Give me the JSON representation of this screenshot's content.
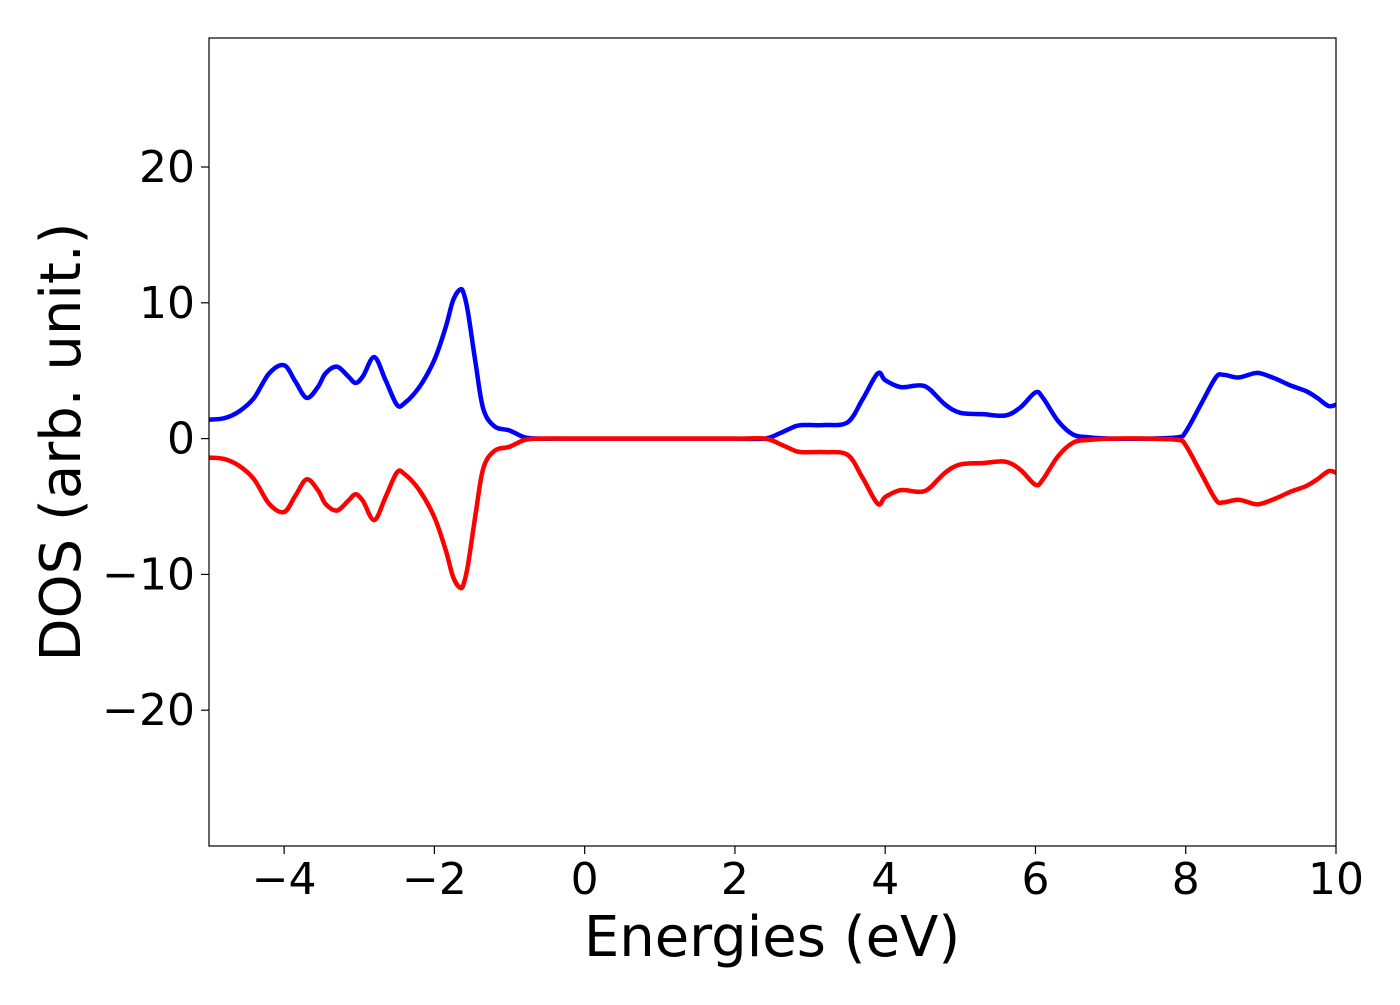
{
  "chart_data": {
    "type": "line",
    "title": "",
    "xlabel": "Energies (eV)",
    "ylabel": "DOS (arb. unit.)",
    "xlim": [
      -5,
      10
    ],
    "ylim": [
      -30,
      29.5
    ],
    "xticks": [
      -4,
      -2,
      0,
      2,
      4,
      6,
      8,
      10
    ],
    "xtick_labels": [
      "−4",
      "−2",
      "0",
      "2",
      "4",
      "6",
      "8",
      "10"
    ],
    "yticks": [
      -20,
      -10,
      0,
      10,
      20
    ],
    "ytick_labels": [
      "−20",
      "−10",
      "0",
      "10",
      "20"
    ],
    "grid": false,
    "legend": "none",
    "series": [
      {
        "color": "#0000ff",
        "x": [
          -5.0,
          -4.8,
          -4.6,
          -4.4,
          -4.2,
          -4.0,
          -3.85,
          -3.7,
          -3.55,
          -3.45,
          -3.3,
          -3.15,
          -3.05,
          -2.95,
          -2.8,
          -2.65,
          -2.5,
          -2.4,
          -2.2,
          -2.0,
          -1.85,
          -1.75,
          -1.65,
          -1.6,
          -1.55,
          -1.45,
          -1.35,
          -1.2,
          -1.0,
          -0.8,
          -0.6,
          -0.3,
          0.0,
          1.0,
          2.0,
          2.4,
          2.6,
          2.8,
          2.9,
          3.0,
          3.2,
          3.5,
          3.7,
          3.9,
          4.0,
          4.2,
          4.4,
          4.5,
          4.6,
          4.8,
          5.0,
          5.3,
          5.6,
          5.8,
          6.0,
          6.1,
          6.3,
          6.5,
          6.7,
          7.0,
          7.5,
          7.9,
          8.0,
          8.2,
          8.4,
          8.5,
          8.7,
          8.9,
          9.0,
          9.2,
          9.4,
          9.6,
          9.75,
          9.9,
          10.0
        ],
        "y": [
          1.4,
          1.5,
          2.0,
          3.0,
          4.8,
          5.4,
          4.2,
          3.0,
          3.8,
          4.8,
          5.3,
          4.6,
          4.1,
          4.6,
          6.0,
          4.3,
          2.5,
          2.6,
          3.8,
          5.8,
          8.2,
          10.2,
          11.0,
          10.5,
          9.2,
          5.5,
          2.2,
          0.9,
          0.6,
          0.1,
          0.0,
          0.0,
          0.0,
          0.0,
          0.0,
          0.0,
          0.4,
          0.9,
          1.0,
          1.0,
          1.0,
          1.2,
          2.9,
          4.8,
          4.3,
          3.8,
          3.9,
          3.9,
          3.6,
          2.5,
          1.9,
          1.8,
          1.7,
          2.3,
          3.4,
          3.0,
          1.3,
          0.3,
          0.1,
          0.0,
          0.0,
          0.1,
          0.5,
          2.5,
          4.5,
          4.7,
          4.5,
          4.8,
          4.8,
          4.4,
          3.9,
          3.5,
          3.0,
          2.4,
          2.5
        ]
      },
      {
        "color": "#ff0000",
        "x": [
          -5.0,
          -4.8,
          -4.6,
          -4.4,
          -4.2,
          -4.0,
          -3.85,
          -3.7,
          -3.55,
          -3.45,
          -3.3,
          -3.15,
          -3.05,
          -2.95,
          -2.8,
          -2.65,
          -2.5,
          -2.4,
          -2.2,
          -2.0,
          -1.85,
          -1.75,
          -1.65,
          -1.6,
          -1.55,
          -1.45,
          -1.35,
          -1.2,
          -1.0,
          -0.8,
          -0.6,
          -0.3,
          0.0,
          1.0,
          2.0,
          2.4,
          2.6,
          2.8,
          2.9,
          3.0,
          3.2,
          3.5,
          3.7,
          3.9,
          4.0,
          4.2,
          4.4,
          4.5,
          4.6,
          4.8,
          5.0,
          5.3,
          5.6,
          5.8,
          6.0,
          6.1,
          6.3,
          6.5,
          6.7,
          7.0,
          7.5,
          7.9,
          8.0,
          8.2,
          8.4,
          8.5,
          8.7,
          8.9,
          9.0,
          9.2,
          9.4,
          9.6,
          9.75,
          9.9,
          10.0
        ],
        "y": [
          -1.4,
          -1.5,
          -2.0,
          -3.0,
          -4.8,
          -5.4,
          -4.2,
          -3.0,
          -3.8,
          -4.8,
          -5.3,
          -4.6,
          -4.1,
          -4.6,
          -6.0,
          -4.3,
          -2.5,
          -2.6,
          -3.8,
          -5.8,
          -8.2,
          -10.2,
          -11.0,
          -10.5,
          -9.2,
          -5.5,
          -2.2,
          -0.9,
          -0.6,
          -0.1,
          0.0,
          0.0,
          0.0,
          0.0,
          0.0,
          0.0,
          -0.4,
          -0.9,
          -1.0,
          -1.0,
          -1.0,
          -1.2,
          -2.9,
          -4.8,
          -4.3,
          -3.8,
          -3.9,
          -3.9,
          -3.6,
          -2.5,
          -1.9,
          -1.8,
          -1.7,
          -2.3,
          -3.4,
          -3.0,
          -1.3,
          -0.3,
          -0.1,
          0.0,
          0.0,
          -0.1,
          -0.5,
          -2.5,
          -4.5,
          -4.7,
          -4.5,
          -4.8,
          -4.8,
          -4.4,
          -3.9,
          -3.5,
          -3.0,
          -2.4,
          -2.5
        ]
      }
    ]
  }
}
